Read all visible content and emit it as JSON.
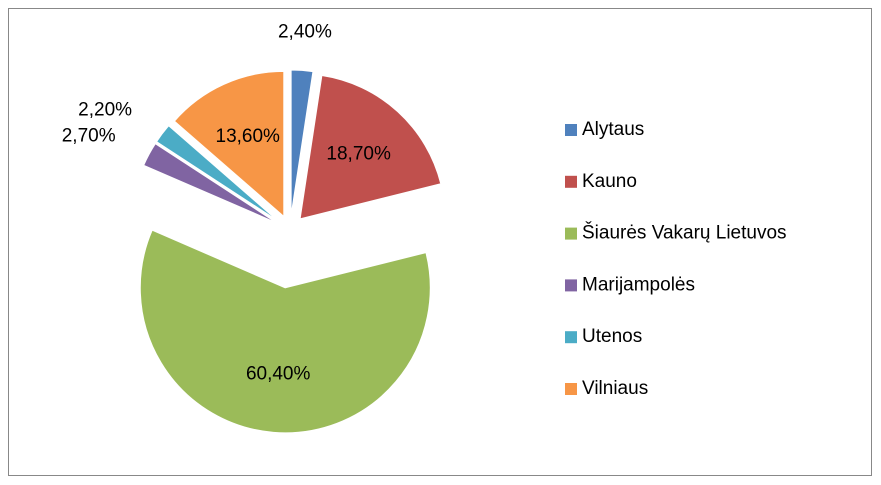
{
  "chart_data": {
    "type": "pie",
    "categories": [
      "Alytaus",
      "Kauno",
      "Šiaurės Vakarų Lietuvos",
      "Marijampolės",
      "Utenos",
      "Vilniaus"
    ],
    "values": [
      2.4,
      18.7,
      60.4,
      2.7,
      2.2,
      13.6
    ],
    "value_labels": [
      "2,40%",
      "18,70%",
      "60,40%",
      "2,70%",
      "2,20%",
      "13,60%"
    ],
    "colors": [
      "#4f81bd",
      "#c0504d",
      "#9bbb59",
      "#8064a2",
      "#4bacc6",
      "#f79646"
    ],
    "legend": "right"
  }
}
